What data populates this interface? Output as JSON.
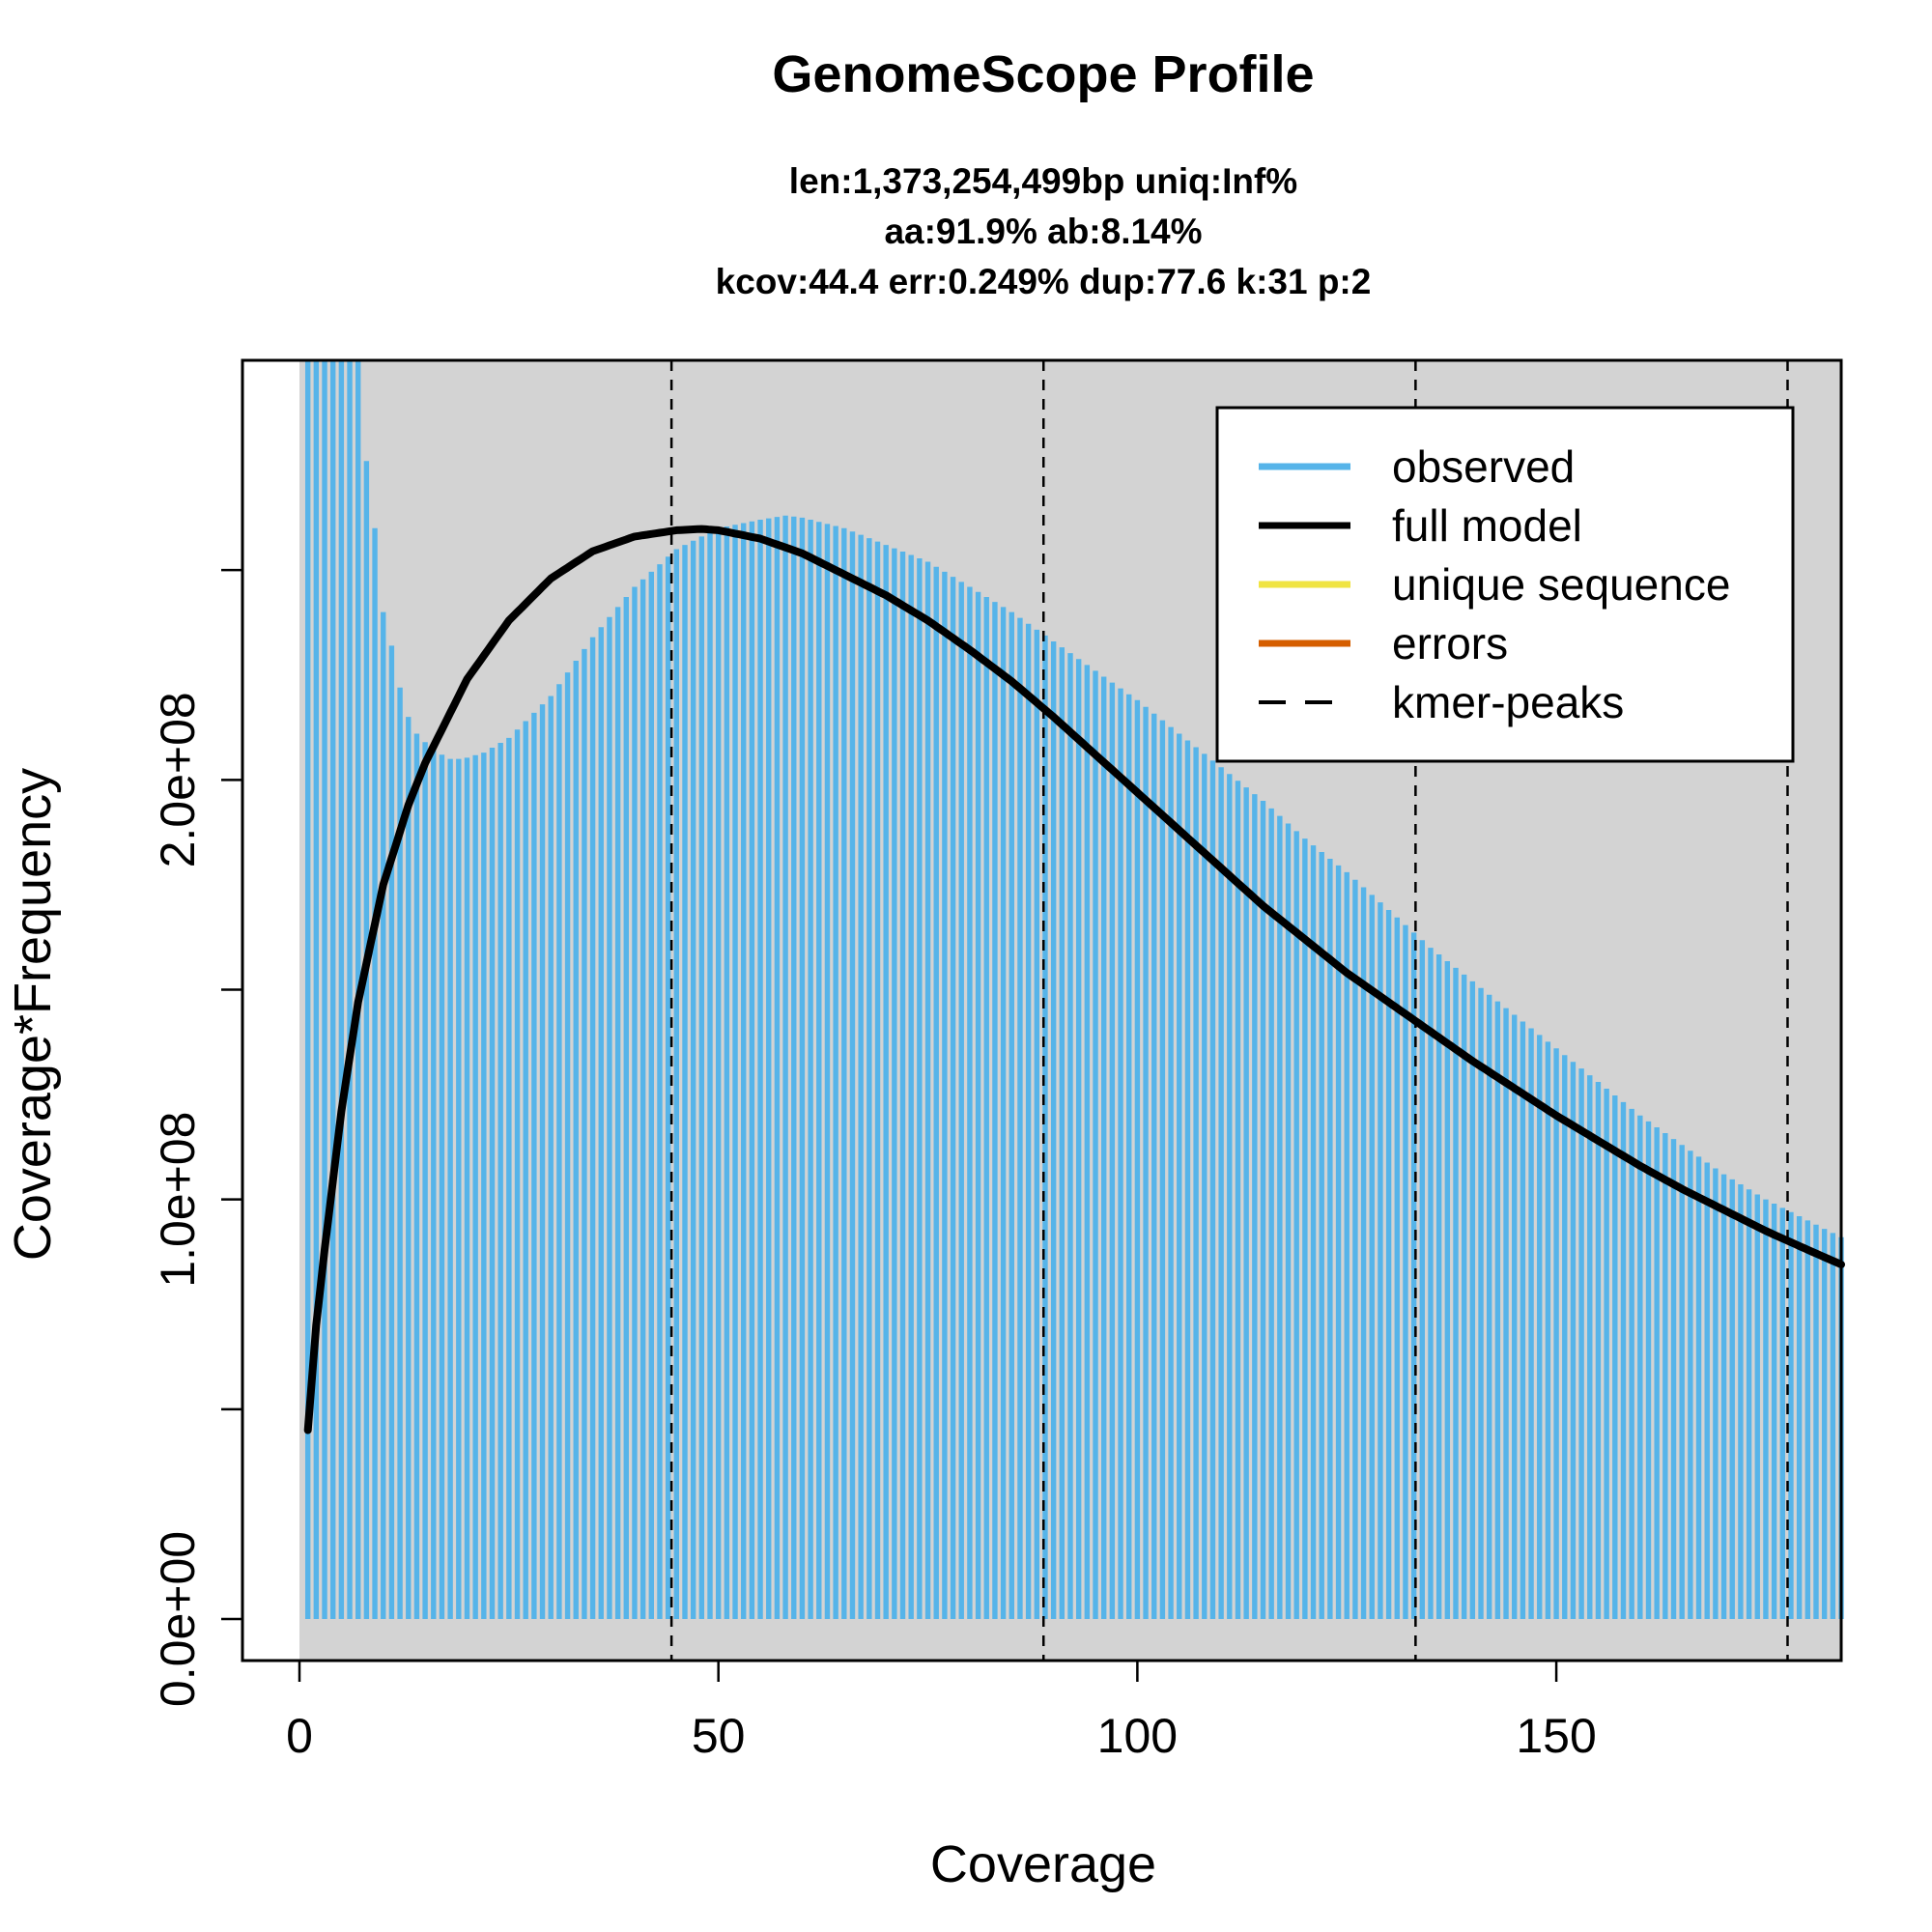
{
  "chart_data": {
    "type": "bar",
    "title": "GenomeScope Profile",
    "subtitle_lines": [
      "len:1,373,254,499bp uniq:Inf%",
      "aa:91.9% ab:8.14%",
      "kcov:44.4 err:0.249%  dup:77.6  k:31 p:2"
    ],
    "xlabel": "Coverage",
    "ylabel": "Coverage*Frequency",
    "xlim": [
      0,
      184
    ],
    "ylim": [
      0,
      300000000
    ],
    "x_ticks": [
      0,
      50,
      100,
      150
    ],
    "x_tick_labels": [
      "0",
      "50",
      "100",
      "150"
    ],
    "y_ticks": [
      0,
      50000000,
      100000000,
      150000000,
      200000000,
      250000000
    ],
    "y_tick_labels": [
      "0.0e+00",
      "",
      "1.0e+08",
      "",
      "2.0e+08",
      ""
    ],
    "grid": false,
    "legend_position": "top-right",
    "colors": {
      "observed": "#56B4E9",
      "full_model": "#000000",
      "unique_sequence": "#F0E442",
      "errors": "#D55E00",
      "kmer_peaks": "#000000",
      "panel_background": "#D3D3D3"
    },
    "legend": [
      {
        "label": "observed",
        "style": "solid"
      },
      {
        "label": "full model",
        "style": "solid"
      },
      {
        "label": "unique sequence",
        "style": "solid"
      },
      {
        "label": "errors",
        "style": "solid"
      },
      {
        "label": "kmer-peaks",
        "style": "dashed"
      }
    ],
    "observed": {
      "name": "observed",
      "x_range": [
        1,
        184
      ],
      "anchors": [
        [
          1,
          400000000
        ],
        [
          7,
          400000000
        ],
        [
          8,
          276000000
        ],
        [
          9,
          260000000
        ],
        [
          10,
          240000000
        ],
        [
          11,
          232000000
        ],
        [
          12,
          222000000
        ],
        [
          13,
          215000000
        ],
        [
          14,
          211000000
        ],
        [
          15,
          209000000
        ],
        [
          16,
          207000000
        ],
        [
          17,
          206000000
        ],
        [
          18,
          205000000
        ],
        [
          19,
          205000000
        ],
        [
          20,
          205300000
        ],
        [
          22,
          206500000
        ],
        [
          25,
          210000000
        ],
        [
          30,
          220000000
        ],
        [
          35,
          234000000
        ],
        [
          40,
          246000000
        ],
        [
          45,
          255000000
        ],
        [
          50,
          260000000
        ],
        [
          55,
          262000000
        ],
        [
          58,
          263000000
        ],
        [
          60,
          262500000
        ],
        [
          65,
          260000000
        ],
        [
          70,
          256000000
        ],
        [
          75,
          252000000
        ],
        [
          80,
          246000000
        ],
        [
          85,
          240000000
        ],
        [
          90,
          233000000
        ],
        [
          95,
          226000000
        ],
        [
          100,
          219000000
        ],
        [
          105,
          211000000
        ],
        [
          110,
          203000000
        ],
        [
          115,
          195000000
        ],
        [
          120,
          186000000
        ],
        [
          125,
          178000000
        ],
        [
          130,
          169000000
        ],
        [
          135,
          160000000
        ],
        [
          140,
          152000000
        ],
        [
          145,
          144000000
        ],
        [
          150,
          136000000
        ],
        [
          155,
          128000000
        ],
        [
          160,
          120000000
        ],
        [
          165,
          113000000
        ],
        [
          170,
          106000000
        ],
        [
          175,
          100000000
        ],
        [
          180,
          95000000
        ],
        [
          184,
          91000000
        ]
      ]
    },
    "full_model": {
      "name": "full model",
      "x_range": [
        1,
        184
      ],
      "anchors": [
        [
          1,
          45000000
        ],
        [
          2,
          70000000
        ],
        [
          3,
          88000000
        ],
        [
          5,
          121000000
        ],
        [
          7,
          147000000
        ],
        [
          10,
          175000000
        ],
        [
          13,
          194000000
        ],
        [
          15,
          204000000
        ],
        [
          18,
          216000000
        ],
        [
          20,
          224000000
        ],
        [
          25,
          238000000
        ],
        [
          30,
          248000000
        ],
        [
          35,
          254500000
        ],
        [
          40,
          258000000
        ],
        [
          45,
          259500000
        ],
        [
          48,
          259800000
        ],
        [
          50,
          259500000
        ],
        [
          55,
          257500000
        ],
        [
          60,
          254000000
        ],
        [
          65,
          249000000
        ],
        [
          70,
          244000000
        ],
        [
          75,
          238000000
        ],
        [
          80,
          231000000
        ],
        [
          85,
          223500000
        ],
        [
          90,
          215000000
        ],
        [
          95,
          206000000
        ],
        [
          100,
          197000000
        ],
        [
          105,
          188000000
        ],
        [
          110,
          179000000
        ],
        [
          115,
          170000000
        ],
        [
          120,
          162000000
        ],
        [
          125,
          154000000
        ],
        [
          130,
          147000000
        ],
        [
          135,
          140000000
        ],
        [
          140,
          133000000
        ],
        [
          145,
          126500000
        ],
        [
          150,
          120000000
        ],
        [
          155,
          114000000
        ],
        [
          160,
          108000000
        ],
        [
          165,
          102500000
        ],
        [
          170,
          97500000
        ],
        [
          175,
          92500000
        ],
        [
          180,
          88000000
        ],
        [
          184,
          84500000
        ]
      ]
    },
    "kmer_peaks": [
      44.4,
      88.8,
      133.2,
      177.6
    ]
  }
}
